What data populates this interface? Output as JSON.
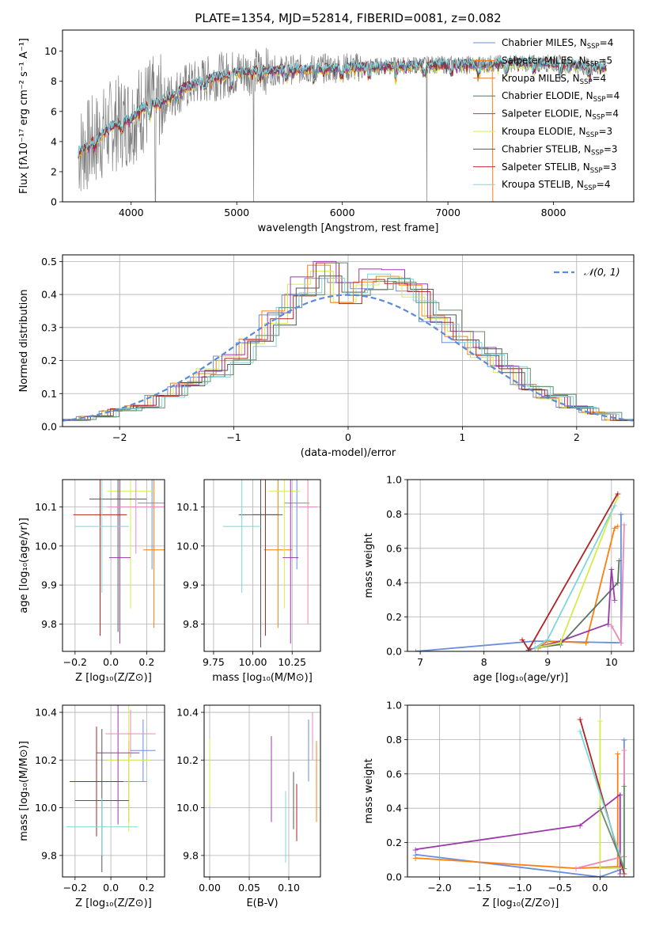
{
  "title": "PLATE=1354, MJD=52814, FIBERID=0081, z=0.082",
  "colors": {
    "chabrier_miles": "#6a8fdc",
    "salpeter_miles": "#ff7f0e",
    "kroupa_miles": "#e87d2d",
    "chabrier_elodie": "#59735e",
    "salpeter_elodie": "#9a3aa8",
    "kroupa_elodie": "#d4ec4b",
    "chabrier_stelib": "#555555",
    "salpeter_stelib": "#b22222",
    "kroupa_stelib": "#7ad8dc",
    "data": "#808080",
    "pink": "#e88ab8",
    "green": "#6b8e6b"
  },
  "chart_data": [
    {
      "type": "line",
      "panel": "spectrum",
      "xlabel": "wavelength [Angstrom, rest frame]",
      "ylabel": "Flux [fλ10⁻¹⁷ erg cm⁻² s⁻¹ A⁻¹]",
      "xlim": [
        3350,
        8760
      ],
      "ylim": [
        0,
        11.4
      ],
      "xticks": [
        4000,
        5000,
        6000,
        7000,
        8000
      ],
      "yticks": [
        0,
        2,
        4,
        6,
        8,
        10
      ],
      "grid": false,
      "legend_position": "right",
      "legend": [
        {
          "label": "Chabrier MILES, N",
          "sub": "SSP",
          "suffix": "=4",
          "color_key": "chabrier_miles"
        },
        {
          "label": "Salpeter MILES, N",
          "sub": "SSP",
          "suffix": "=5",
          "color_key": "salpeter_miles"
        },
        {
          "label": "Kroupa MILES, N",
          "sub": "SSP",
          "suffix": "=4",
          "color_key": "kroupa_miles"
        },
        {
          "label": "Chabrier ELODIE, N",
          "sub": "SSP",
          "suffix": "=4",
          "color_key": "chabrier_elodie"
        },
        {
          "label": "Salpeter ELODIE, N",
          "sub": "SSP",
          "suffix": "=4",
          "color_key": "salpeter_elodie"
        },
        {
          "label": "Kroupa ELODIE, N",
          "sub": "SSP",
          "suffix": "=3",
          "color_key": "kroupa_elodie"
        },
        {
          "label": "Chabrier STELIB, N",
          "sub": "SSP",
          "suffix": "=3",
          "color_key": "chabrier_stelib"
        },
        {
          "label": "Salpeter STELIB, N",
          "sub": "SSP",
          "suffix": "=3",
          "color_key": "salpeter_stelib"
        },
        {
          "label": "Kroupa STELIB, N",
          "sub": "SSP",
          "suffix": "=4",
          "color_key": "kroupa_stelib"
        }
      ],
      "model_continuum": {
        "x": [
          3500,
          3600,
          3700,
          3800,
          3900,
          4000,
          4100,
          4200,
          4300,
          4500,
          4700,
          5000,
          5300,
          5600,
          6000,
          6400,
          6800,
          7200,
          7600,
          8000,
          8300,
          8500
        ],
        "y": [
          3.3,
          3.8,
          4.3,
          5.0,
          5.3,
          5.5,
          6.2,
          6.5,
          6.7,
          7.6,
          8.1,
          8.6,
          8.7,
          8.8,
          8.9,
          9.0,
          9.1,
          9.1,
          9.2,
          9.2,
          9.0,
          8.9
        ]
      }
    },
    {
      "type": "step",
      "panel": "residual_histogram",
      "xlabel": "(data-model)/error",
      "ylabel": "Normed distribution",
      "xlim": [
        -2.5,
        2.5
      ],
      "ylim": [
        0,
        0.52
      ],
      "xticks": [
        -2,
        -1,
        0,
        1,
        2
      ],
      "yticks": [
        0.0,
        0.1,
        0.2,
        0.3,
        0.4,
        0.5
      ],
      "grid": true,
      "legend_position": "top-right",
      "reference_label": "𝒩(0, 1)",
      "bin_edges": [
        -2.5,
        -2.3,
        -2.1,
        -1.9,
        -1.7,
        -1.5,
        -1.3,
        -1.1,
        -0.9,
        -0.7,
        -0.5,
        -0.3,
        -0.1,
        0.1,
        0.3,
        0.5,
        0.7,
        0.9,
        1.1,
        1.3,
        1.5,
        1.7,
        1.9,
        2.1,
        2.3,
        2.5
      ],
      "values": [
        0.02,
        0.03,
        0.05,
        0.06,
        0.09,
        0.13,
        0.16,
        0.2,
        0.26,
        0.33,
        0.42,
        0.46,
        0.4,
        0.44,
        0.44,
        0.4,
        0.33,
        0.27,
        0.22,
        0.17,
        0.12,
        0.09,
        0.06,
        0.04,
        0.02
      ]
    },
    {
      "type": "errorbar",
      "panel": "age_vs_Z",
      "xlabel": "Z [log₁₀(Z/Z⊙)]",
      "ylabel": "age  [log₁₀(age/yr)]",
      "xlim": [
        -0.27,
        0.3
      ],
      "ylim": [
        9.73,
        10.17
      ],
      "xticks": [
        -0.2,
        0.0,
        0.2
      ],
      "yticks": [
        9.8,
        9.9,
        10.0,
        10.1
      ],
      "grid": true
    },
    {
      "type": "errorbar",
      "panel": "age_vs_mass",
      "xlabel": "mass [log₁₀(M/M⊙)]",
      "ylabel": "",
      "xlim": [
        9.69,
        10.43
      ],
      "ylim": [
        9.73,
        10.17
      ],
      "xticks": [
        9.75,
        10.0,
        10.25
      ],
      "yticks": [
        9.8,
        9.9,
        10.0,
        10.1
      ],
      "grid": true
    },
    {
      "type": "line",
      "panel": "mass_weight_vs_age",
      "xlabel": "age  [log₁₀(age/yr)]",
      "ylabel": "mass weight",
      "xlim": [
        6.8,
        10.35
      ],
      "ylim": [
        0,
        1.0
      ],
      "xticks": [
        7,
        8,
        9,
        10
      ],
      "yticks": [
        0.0,
        0.2,
        0.4,
        0.6,
        0.8,
        1.0
      ],
      "grid": true,
      "series": [
        {
          "color_key": "chabrier_miles",
          "x": [
            6.93,
            8.8,
            10.15,
            10.15
          ],
          "y": [
            0.0,
            0.06,
            0.05,
            0.8
          ]
        },
        {
          "color_key": "salpeter_miles",
          "x": [
            8.85,
            9.0,
            9.6,
            10.05,
            10.1
          ],
          "y": [
            0.02,
            0.06,
            0.05,
            0.72,
            0.73
          ]
        },
        {
          "color_key": "chabrier_elodie",
          "x": [
            8.8,
            9.2,
            10.1,
            10.12
          ],
          "y": [
            0.02,
            0.04,
            0.4,
            0.53
          ]
        },
        {
          "color_key": "salpeter_elodie",
          "x": [
            8.7,
            9.2,
            9.95,
            10.0,
            10.05
          ],
          "y": [
            0.01,
            0.06,
            0.16,
            0.48,
            0.3
          ]
        },
        {
          "color_key": "kroupa_elodie",
          "x": [
            8.8,
            9.2,
            10.1
          ],
          "y": [
            0.02,
            0.05,
            0.9
          ]
        },
        {
          "color_key": "salpeter_stelib",
          "x": [
            8.6,
            8.7,
            10.1
          ],
          "y": [
            0.07,
            0.01,
            0.92
          ]
        },
        {
          "color_key": "kroupa_stelib",
          "x": [
            8.8,
            9.0,
            10.05
          ],
          "y": [
            0.02,
            0.07,
            0.85
          ]
        },
        {
          "color_key": "pink",
          "x": [
            10.0,
            10.15,
            10.2
          ],
          "y": [
            0.15,
            0.05,
            0.74
          ]
        }
      ]
    },
    {
      "type": "errorbar",
      "panel": "mass_vs_Z",
      "xlabel": "Z [log₁₀(Z/Z⊙)]",
      "ylabel": "mass [log₁₀(M/M⊙)]",
      "xlim": [
        -0.27,
        0.3
      ],
      "ylim": [
        9.71,
        10.43
      ],
      "xticks": [
        -0.2,
        0.0,
        0.2
      ],
      "yticks": [
        9.8,
        10.0,
        10.2,
        10.4
      ],
      "grid": true
    },
    {
      "type": "errorbar",
      "panel": "mass_vs_ebv",
      "xlabel": "E(B-V)",
      "ylabel": "",
      "xlim": [
        -0.007,
        0.14
      ],
      "ylim": [
        9.71,
        10.43
      ],
      "xticks": [
        0.0,
        0.05,
        0.1
      ],
      "yticks": [
        9.8,
        10.0,
        10.2,
        10.4
      ],
      "grid": true
    },
    {
      "type": "line",
      "panel": "mass_weight_vs_Z",
      "xlabel": "Z [log₁₀(Z/Z⊙)]",
      "ylabel": "mass weight",
      "xlim": [
        -2.4,
        0.42
      ],
      "ylim": [
        0,
        1.0
      ],
      "xticks": [
        -2.0,
        -1.5,
        -1.0,
        -0.5,
        0.0
      ],
      "yticks": [
        0.0,
        0.2,
        0.4,
        0.6,
        0.8,
        1.0
      ],
      "grid": true,
      "series": [
        {
          "color_key": "chabrier_miles",
          "x": [
            -2.3,
            0.0,
            0.3,
            0.3
          ],
          "y": [
            0.13,
            0.0,
            0.05,
            0.8
          ]
        },
        {
          "color_key": "salpeter_miles",
          "x": [
            -2.3,
            -0.3,
            0.22,
            0.22
          ],
          "y": [
            0.11,
            0.05,
            0.06,
            0.72
          ]
        },
        {
          "color_key": "salpeter_elodie",
          "x": [
            -2.3,
            -0.25,
            0.25,
            0.25
          ],
          "y": [
            0.16,
            0.3,
            0.48,
            0.02
          ]
        },
        {
          "color_key": "kroupa_elodie",
          "x": [
            0.0,
            0.0,
            0.3
          ],
          "y": [
            0.91,
            0.05,
            0.05
          ]
        },
        {
          "color_key": "salpeter_stelib",
          "x": [
            -0.25,
            0.3
          ],
          "y": [
            0.92,
            0.02
          ]
        },
        {
          "color_key": "kroupa_stelib",
          "x": [
            -0.25,
            0.3
          ],
          "y": [
            0.85,
            0.05
          ]
        },
        {
          "color_key": "pink",
          "x": [
            -0.3,
            0.3,
            0.3
          ],
          "y": [
            0.05,
            0.12,
            0.74
          ]
        },
        {
          "color_key": "green",
          "x": [
            0.0,
            0.3,
            0.3
          ],
          "y": [
            0.4,
            0.05,
            0.53
          ]
        }
      ]
    }
  ]
}
